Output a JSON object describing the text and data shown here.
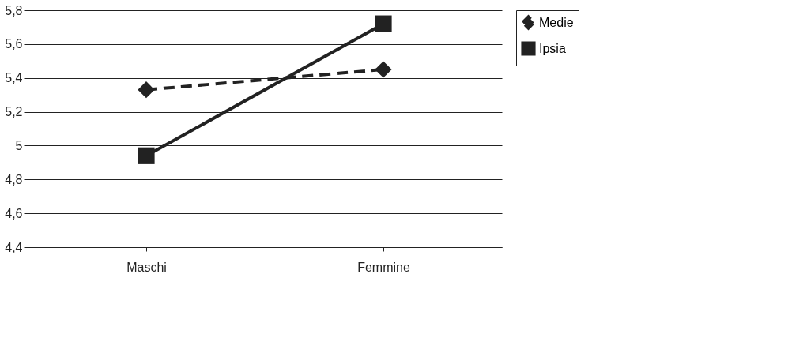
{
  "chart_data": {
    "type": "line",
    "categories": [
      "Maschi",
      "Femmine"
    ],
    "series": [
      {
        "name": "Medie",
        "color": "#222222",
        "values": [
          5.33,
          5.45
        ],
        "marker": "diamond",
        "line_style": "dashed"
      },
      {
        "name": "Ipsia",
        "color": "#222222",
        "values": [
          4.94,
          5.72
        ],
        "marker": "square",
        "line_style": "solid"
      }
    ],
    "ylim": [
      4.4,
      5.8
    ],
    "yticks": [
      {
        "value": 4.4,
        "label": "4,4"
      },
      {
        "value": 4.6,
        "label": "4,6"
      },
      {
        "value": 4.8,
        "label": "4,8"
      },
      {
        "value": 5,
        "label": "5"
      },
      {
        "value": 5.2,
        "label": "5,2"
      },
      {
        "value": 5.4,
        "label": "5,4"
      },
      {
        "value": 5.6,
        "label": "5,6"
      },
      {
        "value": 5.8,
        "label": "5,8"
      }
    ],
    "grid": "y",
    "legend": "right"
  }
}
